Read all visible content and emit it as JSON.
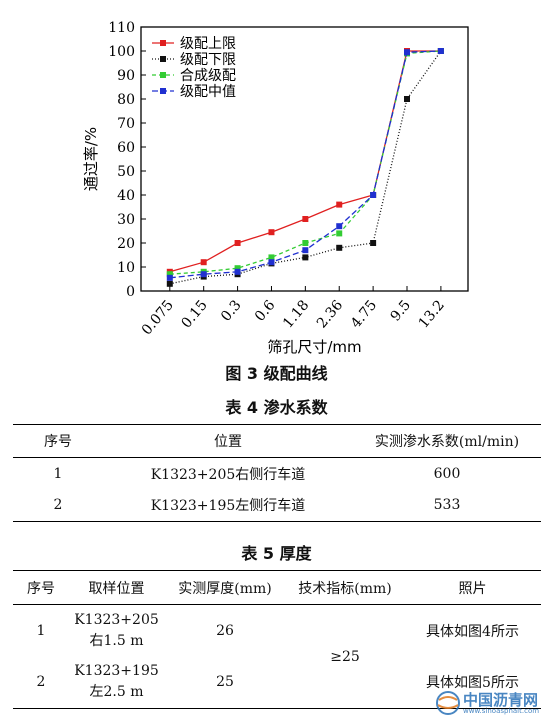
{
  "chart_data": {
    "type": "line",
    "categories": [
      "0.075",
      "0.15",
      "0.3",
      "0.6",
      "1.18",
      "2.36",
      "4.75",
      "9.5",
      "13.2"
    ],
    "xlabel": "筛孔尺寸/mm",
    "ylabel": "通过率/%",
    "ylim": [
      0,
      110
    ],
    "yticks": [
      0,
      10,
      20,
      30,
      40,
      50,
      60,
      70,
      80,
      90,
      100,
      110
    ],
    "legend_position": "top-left",
    "series": [
      {
        "name": "级配上限",
        "color": "#e02020",
        "dash": "",
        "marker": "square",
        "values": [
          8,
          12,
          20,
          24.5,
          30,
          36,
          40,
          100,
          100
        ]
      },
      {
        "name": "级配下限",
        "color": "#111111",
        "dash": "1 2",
        "marker": "square",
        "values": [
          3,
          6,
          7,
          11.5,
          14,
          18,
          20,
          80,
          100
        ]
      },
      {
        "name": "合成级配",
        "color": "#33cc33",
        "dash": "4 3",
        "marker": "square",
        "values": [
          7,
          8,
          9.5,
          14,
          20,
          24,
          40,
          99,
          100
        ]
      },
      {
        "name": "级配中值",
        "color": "#2030d0",
        "dash": "6 3",
        "marker": "square",
        "values": [
          5.5,
          7,
          8,
          12,
          17,
          27,
          40,
          99.5,
          100
        ]
      }
    ]
  },
  "figure_caption": "图 3 级配曲线",
  "table4": {
    "caption": "表 4   渗水系数",
    "headers": [
      "序号",
      "位置",
      "实测渗水系数(ml/min)"
    ],
    "rows": [
      [
        "1",
        "K1323+205右侧行车道",
        "600"
      ],
      [
        "2",
        "K1323+195左侧行车道",
        "533"
      ]
    ]
  },
  "table5": {
    "caption": "表 5   厚度",
    "headers": [
      "序号",
      "取样位置",
      "实测厚度(mm)",
      "技术指标(mm)",
      "照片"
    ],
    "rows": [
      {
        "no": "1",
        "loc_line1": "K1323+205",
        "loc_line2": "右1.5 m",
        "thickness": "26",
        "photo": "具体如图4所示"
      },
      {
        "no": "2",
        "loc_line1": "K1323+195",
        "loc_line2": "左2.5 m",
        "thickness": "25",
        "photo": "具体如图5所示"
      }
    ],
    "spec": "≥25"
  },
  "watermark": {
    "text": "中国沥青网",
    "url": "www.sinoasphalt.com"
  }
}
